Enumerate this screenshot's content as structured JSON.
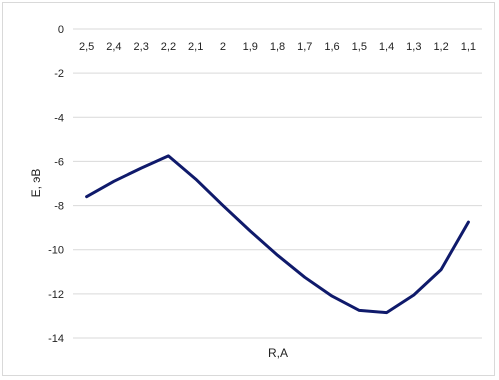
{
  "chart_data": {
    "type": "line",
    "title": "",
    "xlabel": "R,A",
    "ylabel": "E, эВ",
    "x_tick_labels": [
      "2,5",
      "2,4",
      "2,3",
      "2,2",
      "2,1",
      "2",
      "1,9",
      "1,8",
      "1,7",
      "1,6",
      "1,5",
      "1,4",
      "1,3",
      "1,2",
      "1,1"
    ],
    "y_tick_labels": [
      "0",
      "-2",
      "-4",
      "-6",
      "-8",
      "-10",
      "-12",
      "-14"
    ],
    "ylim": [
      -14,
      0
    ],
    "x_axis_position": "top",
    "grid": true,
    "legend": "none",
    "series": [
      {
        "color": "#0f1a6b",
        "x": [
          2.5,
          2.4,
          2.3,
          2.2,
          2.1,
          2.0,
          1.9,
          1.8,
          1.7,
          1.6,
          1.5,
          1.4,
          1.3,
          1.2,
          1.1
        ],
        "y": [
          -7.6,
          -6.9,
          -6.3,
          -5.75,
          -6.8,
          -8.0,
          -9.15,
          -10.25,
          -11.25,
          -12.1,
          -12.75,
          -12.85,
          -12.05,
          -10.9,
          -8.75
        ]
      }
    ]
  }
}
